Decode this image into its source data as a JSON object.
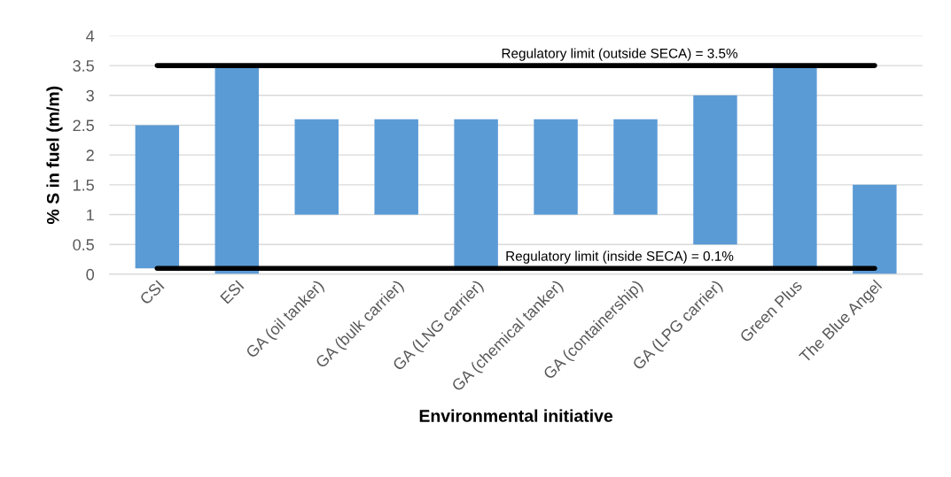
{
  "chart_data": {
    "type": "bar",
    "xlabel": "Environmental initiative",
    "ylabel": "% S in fuel (m/m)",
    "categories": [
      "CSI",
      "ESI",
      "GA (oil tanker)",
      "GA (bulk carrier)",
      "GA (LNG carrier)",
      "GA (chemical tanker)",
      "GA (containership)",
      "GA (LPG carrier)",
      "Green Plus",
      "The Blue Angel"
    ],
    "base": [
      0.1,
      0,
      1,
      1,
      0.1,
      1,
      1,
      0.5,
      0.1,
      0
    ],
    "values": [
      2.4,
      3.5,
      1.6,
      1.6,
      2.5,
      1.6,
      1.6,
      2.5,
      3.4,
      1.5
    ],
    "color": "#5b9bd5",
    "ylim": [
      0,
      4
    ],
    "yticks": [
      0,
      0.5,
      1,
      1.5,
      2,
      2.5,
      3,
      3.5,
      4
    ],
    "grid": "y",
    "ref_lines": [
      {
        "axis": "y",
        "value": 3.5,
        "label": "Regulatory limit (outside SECA) = 3.5%",
        "color": "#000000"
      },
      {
        "axis": "y",
        "value": 0.1,
        "label": "Regulatory limit (inside SECA) = 0.1%",
        "color": "#000000"
      }
    ]
  }
}
